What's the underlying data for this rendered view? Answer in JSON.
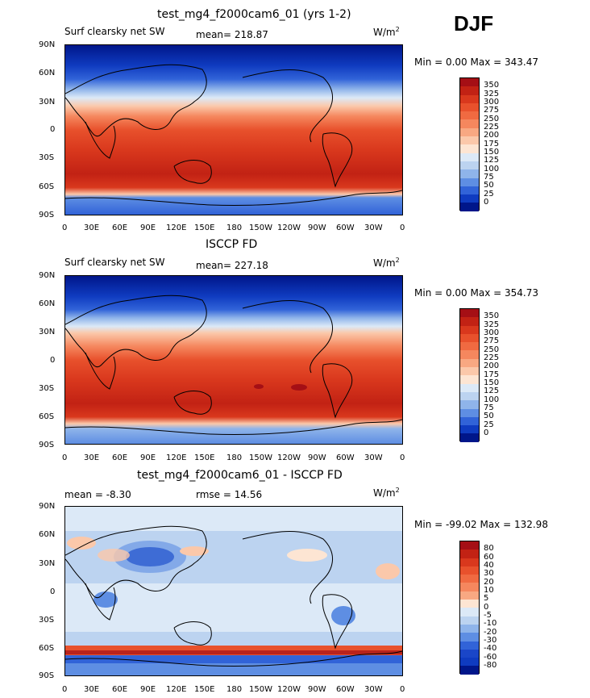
{
  "season": "DJF",
  "panels": [
    {
      "title": "test_mg4_f2000cam6_01 (yrs 1-2)",
      "variable": "Surf clearsky net SW",
      "stat_text": "mean= 218.87",
      "units": "W/m",
      "units_exp": "2",
      "minmax": "Min =    0.00 Max = 343.47",
      "levels": [
        "350",
        "325",
        "300",
        "275",
        "250",
        "225",
        "200",
        "175",
        "150",
        "125",
        "100",
        "75",
        "50",
        "25",
        "0"
      ],
      "colors": [
        "#a50f15",
        "#c22214",
        "#d9381d",
        "#e8512c",
        "#f06a41",
        "#f5875e",
        "#f8a882",
        "#fbc8aa",
        "#fde5d3",
        "#dce9f7",
        "#bcd3f0",
        "#8fb4ea",
        "#5e8ee3",
        "#3163d8",
        "#0f3bc0",
        "#00168a"
      ]
    },
    {
      "title": "ISCCP FD",
      "variable": "Surf clearsky net SW",
      "stat_text": "mean= 227.18",
      "units": "W/m",
      "units_exp": "2",
      "minmax": "Min =    0.00 Max = 354.73",
      "levels": [
        "350",
        "325",
        "300",
        "275",
        "250",
        "225",
        "200",
        "175",
        "150",
        "125",
        "100",
        "75",
        "50",
        "25",
        "0"
      ],
      "colors": [
        "#a50f15",
        "#c22214",
        "#d9381d",
        "#e8512c",
        "#f06a41",
        "#f5875e",
        "#f8a882",
        "#fbc8aa",
        "#fde5d3",
        "#dce9f7",
        "#bcd3f0",
        "#8fb4ea",
        "#5e8ee3",
        "#3163d8",
        "#0f3bc0",
        "#00168a"
      ]
    },
    {
      "title": "test_mg4_f2000cam6_01 - ISCCP FD",
      "variable": "",
      "stat_text": "mean =  -8.30",
      "stat_text2": "rmse =   14.56",
      "units": "W/m",
      "units_exp": "2",
      "minmax": "Min = -99.02 Max = 132.98",
      "levels": [
        "80",
        "60",
        "40",
        "30",
        "20",
        "10",
        "5",
        "0",
        "-5",
        "-10",
        "-20",
        "-30",
        "-40",
        "-60",
        "-80"
      ],
      "colors": [
        "#a50f15",
        "#c22214",
        "#d9381d",
        "#e8512c",
        "#f06a41",
        "#f5875e",
        "#f8a882",
        "#fde5d3",
        "#dce9f7",
        "#bcd3f0",
        "#8fb4ea",
        "#5e8ee3",
        "#3163d8",
        "#1a46c8",
        "#0f3bc0",
        "#00168a"
      ]
    }
  ],
  "lat_ticks": [
    "90N",
    "60N",
    "30N",
    "0",
    "30S",
    "60S",
    "90S"
  ],
  "lon_ticks": [
    "0",
    "30E",
    "60E",
    "90E",
    "120E",
    "150E",
    "180",
    "150W",
    "120W",
    "90W",
    "60W",
    "30W",
    "0"
  ]
}
